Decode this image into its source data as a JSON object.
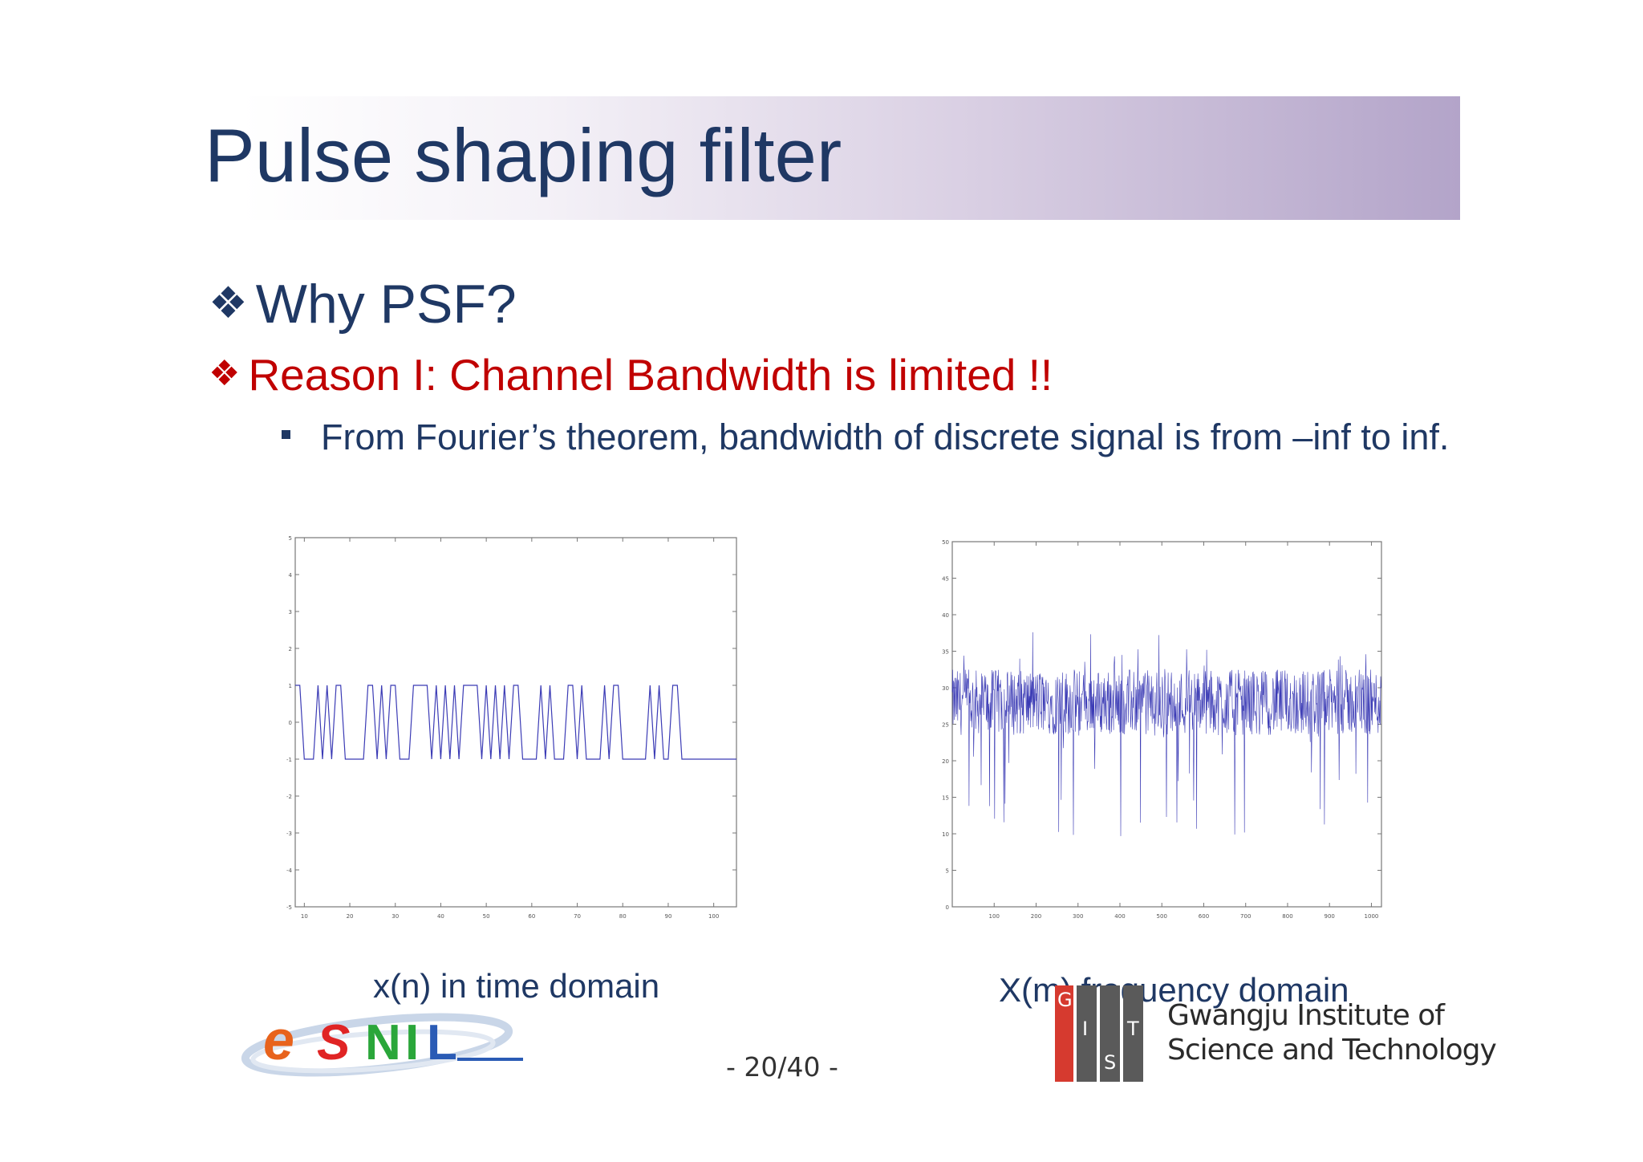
{
  "slide": {
    "title": "Pulse shaping filter",
    "bullets": [
      {
        "marker": "❖",
        "text": "Why PSF?"
      },
      {
        "marker": "❖",
        "text": "Reason I: Channel Bandwidth is limited !!"
      }
    ],
    "sub_bullet": "From Fourier’s theorem, bandwidth of discrete signal is from –inf to inf.",
    "page_number": "- 20/40 -"
  },
  "figures": {
    "left_caption": "x(n) in time domain",
    "right_caption": "X(m) frequency domain"
  },
  "logos": {
    "left": "eSNL",
    "right_letters": [
      "G",
      "I",
      "S",
      "T"
    ],
    "right_name_line1": "Gwangju Institute of",
    "right_name_line2": "Science and Technology"
  },
  "colors": {
    "title": "#1f3864",
    "accent_red": "#c00000",
    "plot_line": "#3b3bb5"
  },
  "chart_data": [
    {
      "type": "line",
      "title": "",
      "xlabel": "",
      "ylabel": "",
      "xlim": [
        8,
        105
      ],
      "ylim": [
        -5,
        5
      ],
      "xticks": [
        10,
        20,
        30,
        40,
        50,
        60,
        70,
        80,
        90,
        100
      ],
      "yticks": [
        5,
        4,
        3,
        2,
        1,
        0,
        -1,
        -2,
        -3,
        -4,
        -5
      ],
      "x_start": 8,
      "x_step": 1,
      "y": [
        1,
        1,
        -1,
        -1,
        -1,
        1,
        -1,
        1,
        -1,
        1,
        1,
        -1,
        -1,
        -1,
        -1,
        -1,
        1,
        1,
        -1,
        1,
        -1,
        1,
        1,
        -1,
        -1,
        -1,
        1,
        1,
        1,
        1,
        -1,
        1,
        -1,
        1,
        -1,
        1,
        -1,
        1,
        1,
        1,
        1,
        -1,
        1,
        -1,
        1,
        -1,
        1,
        -1,
        1,
        1,
        -1,
        -1,
        -1,
        -1,
        1,
        -1,
        1,
        -1,
        -1,
        -1,
        1,
        1,
        -1,
        1,
        -1,
        -1,
        -1,
        -1,
        1,
        -1,
        1,
        1,
        -1,
        -1,
        -1,
        -1,
        -1,
        -1,
        1,
        -1,
        1,
        -1,
        -1,
        1,
        1,
        -1,
        -1,
        -1,
        -1,
        -1,
        -1,
        -1,
        -1,
        -1,
        -1,
        -1,
        -1,
        -1
      ]
    },
    {
      "type": "line",
      "title": "",
      "xlabel": "",
      "ylabel": "",
      "xlim": [
        0,
        1024
      ],
      "ylim": [
        0,
        50
      ],
      "xticks": [
        100,
        200,
        300,
        400,
        500,
        600,
        700,
        800,
        900,
        1000
      ],
      "yticks": [
        50,
        45,
        40,
        35,
        30,
        25,
        20,
        15,
        10,
        5,
        0
      ],
      "num_points": 1024,
      "approx_mean": 28,
      "approx_range": [
        9,
        38
      ]
    }
  ]
}
